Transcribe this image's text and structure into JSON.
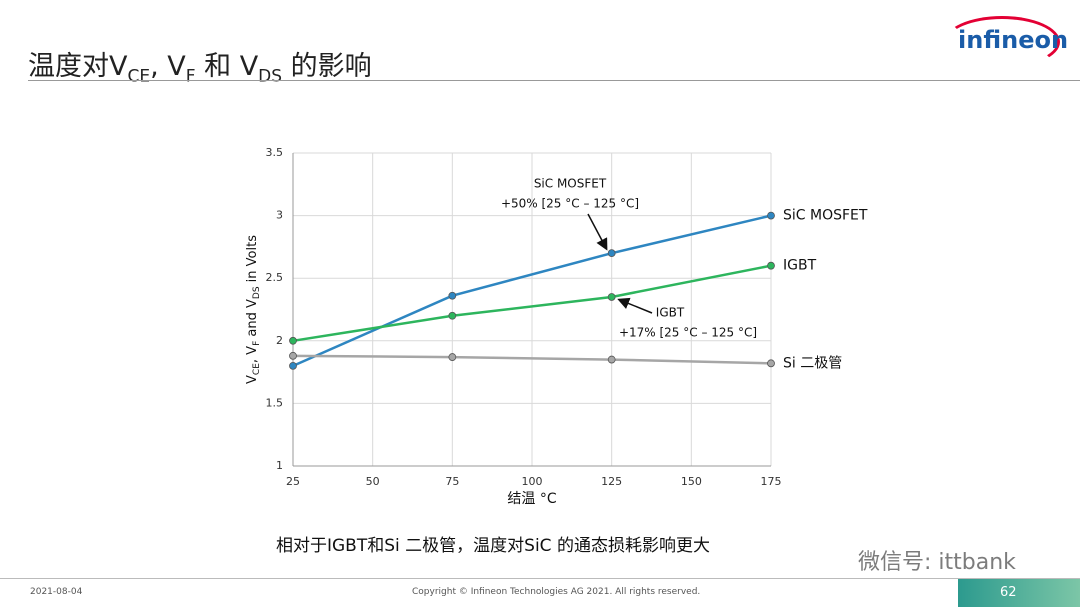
{
  "slide": {
    "title_parts": [
      "温度对V",
      "CE",
      ", V",
      "F",
      " 和 V",
      "DS",
      " 的影响"
    ],
    "logo": "infineon",
    "caption": "相对于IGBT和Si 二极管，温度对SiC 的通态损耗影响更大",
    "date": "2021-08-04",
    "copyright": "Copyright © Infineon Technologies AG 2021. All rights reserved.",
    "page": 62,
    "watermark": "微信号: ittbank"
  },
  "chart_data": {
    "type": "line",
    "y_label_parts": [
      "V",
      "CE",
      ", V",
      "F",
      " and V",
      "DS",
      " in Volts"
    ],
    "x_label": "结温 °C",
    "x": [
      25,
      75,
      125,
      175
    ],
    "xlim": [
      25,
      175
    ],
    "xticks": [
      25,
      50,
      75,
      100,
      125,
      150,
      175
    ],
    "ylim": [
      1,
      3.5
    ],
    "yticks": [
      1,
      1.5,
      2,
      2.5,
      3,
      3.5
    ],
    "grid": true,
    "series": [
      {
        "name": "SiC MOSFET",
        "color": "#2e86c1",
        "values": [
          1.8,
          2.36,
          2.7,
          3.0
        ]
      },
      {
        "name": "IGBT",
        "color": "#2db55d",
        "values": [
          2.0,
          2.2,
          2.35,
          2.6
        ]
      },
      {
        "name": "Si 二极管",
        "color": "#a6a6a6",
        "values": [
          1.88,
          1.87,
          1.85,
          1.82
        ]
      }
    ],
    "annotations": [
      {
        "lines": [
          "SiC MOSFET",
          "+50% [25 °C – 125 °C]"
        ]
      },
      {
        "lines": [
          "IGBT",
          "+17% [25 °C – 125 °C]"
        ]
      }
    ]
  }
}
